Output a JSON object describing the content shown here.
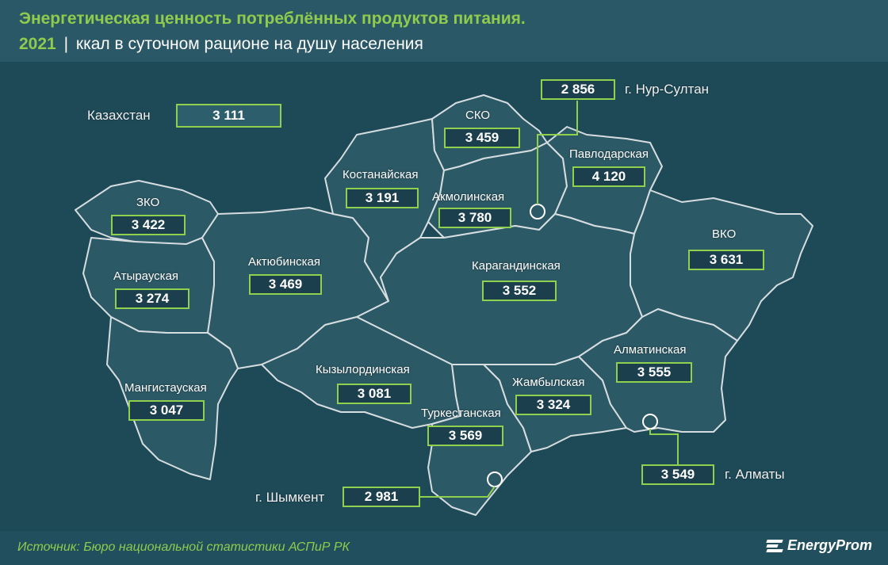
{
  "title": {
    "line1": "Энергетическая ценность потреблённых продуктов питания.",
    "year": "2021",
    "separator": "|",
    "subtitle": "ккал в суточном рационе на душу населения"
  },
  "country": {
    "name": "Казахстан",
    "value": "3 111"
  },
  "regions": [
    {
      "id": "sko",
      "name": "СКО",
      "value": "3 459"
    },
    {
      "id": "kostanay",
      "name": "Костанайская",
      "value": "3 191"
    },
    {
      "id": "akmola",
      "name": "Акмолинская",
      "value": "3 780"
    },
    {
      "id": "pavlodar",
      "name": "Павлодарская",
      "value": "4 120"
    },
    {
      "id": "zko",
      "name": "ЗКО",
      "value": "3 422"
    },
    {
      "id": "aktobe",
      "name": "Актюбинская",
      "value": "3 469"
    },
    {
      "id": "atyrau",
      "name": "Атырауская",
      "value": "3 274"
    },
    {
      "id": "karaganda",
      "name": "Карагандинская",
      "value": "3 552"
    },
    {
      "id": "vko",
      "name": "ВКО",
      "value": "3 631"
    },
    {
      "id": "almaty_reg",
      "name": "Алматинская",
      "value": "3 555"
    },
    {
      "id": "kyzylorda",
      "name": "Кызылординская",
      "value": "3 081"
    },
    {
      "id": "zhambyl",
      "name": "Жамбылская",
      "value": "3 324"
    },
    {
      "id": "mangistau",
      "name": "Мангистауская",
      "value": "3 047"
    },
    {
      "id": "turkestan",
      "name": "Туркестанская",
      "value": "3 569"
    }
  ],
  "cities": [
    {
      "id": "nur_sultan",
      "name": "г. Нур-Султан",
      "value": "2 856"
    },
    {
      "id": "almaty",
      "name": "г. Алматы",
      "value": "3 549"
    },
    {
      "id": "shymkent",
      "name": "г. Шымкент",
      "value": "2 981"
    }
  ],
  "footer": {
    "source": "Источник: Бюро национальной статистики АСПиР РК",
    "logo": "EnergyProm"
  },
  "colors": {
    "background": "#1e4a58",
    "map_fill": "#2c5966",
    "accent": "#8fd14f",
    "border": "#cfd8dc"
  }
}
